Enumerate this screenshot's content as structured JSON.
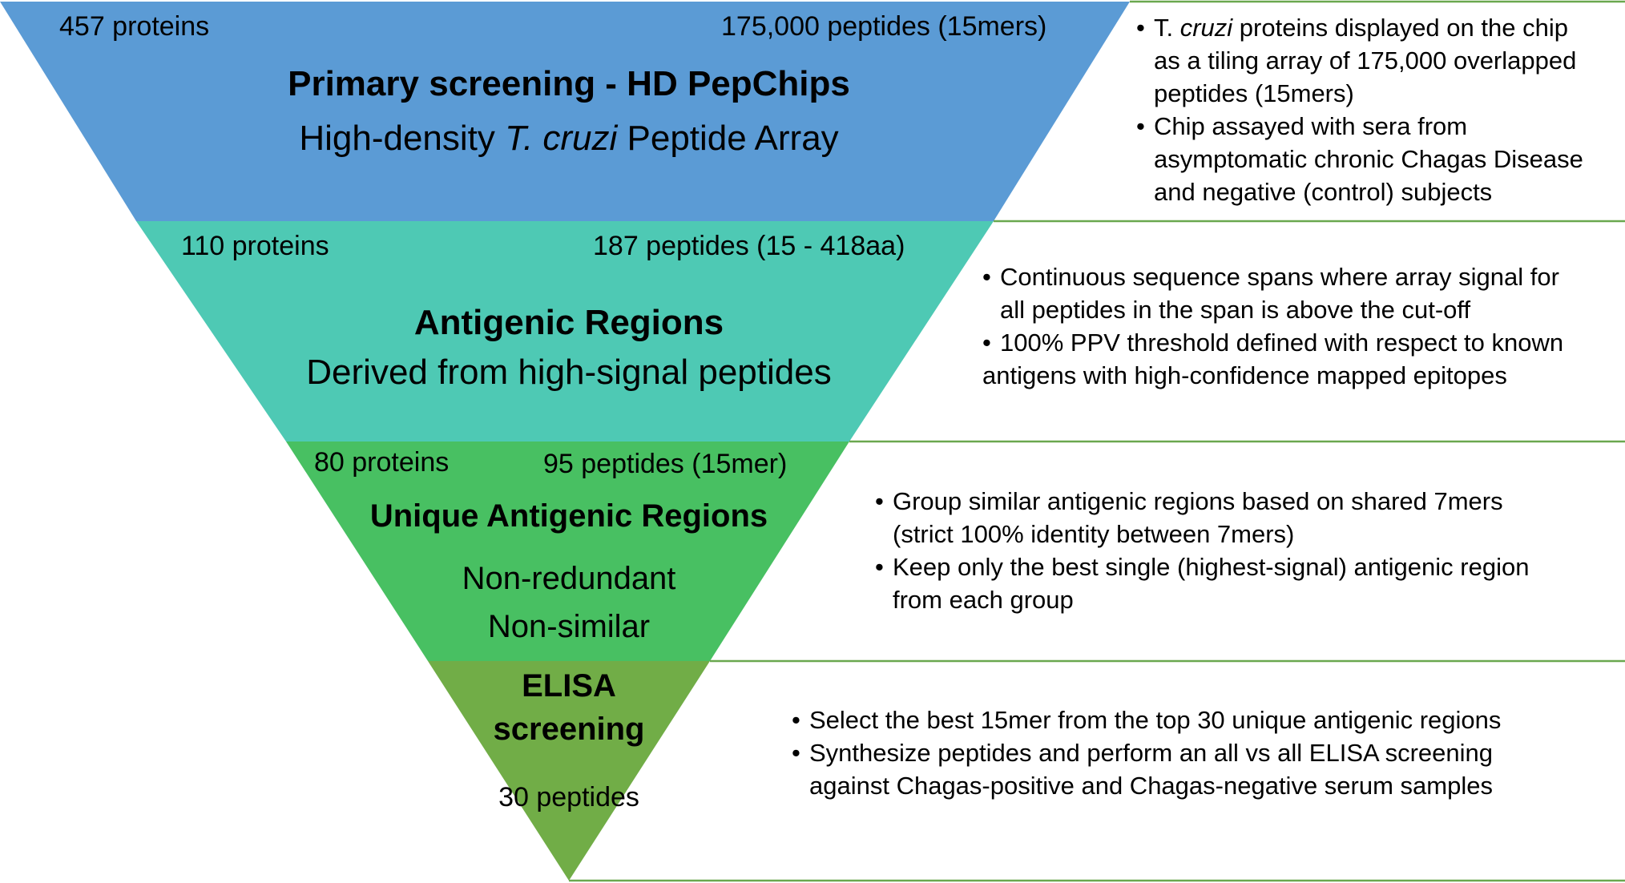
{
  "colors": {
    "level1": "#5b9bd5",
    "level2": "#4ec9b4",
    "level3": "#48c062",
    "level4": "#71ad47",
    "divider_line": "#6aa84f"
  },
  "levels": [
    {
      "left_count": "457 proteins",
      "right_count": "175,000 peptides (15mers)",
      "title": "Primary screening - HD PepChips",
      "subtitle_pre": "High-density ",
      "subtitle_italic": "T. cruzi",
      "subtitle_post": " Peptide Array",
      "bullets": [
        {
          "pre": "T. ",
          "italic": "cruzi",
          "post": " proteins displayed on the chip",
          "lines": [
            "as a tiling array of 175,000 overlapped",
            "peptides (15mers)"
          ]
        },
        {
          "pre": "Chip assayed with sera from",
          "lines": [
            "asymptomatic chronic Chagas Disease",
            "and negative (control) subjects"
          ]
        }
      ]
    },
    {
      "left_count": "110 proteins",
      "right_count": "187 peptides (15 - 418aa)",
      "title": "Antigenic Regions",
      "subtitle": "Derived from high-signal peptides",
      "bullets": [
        {
          "pre": "Continuous sequence spans where array signal for",
          "lines": [
            "all peptides in the span is above the cut-off"
          ]
        },
        {
          "pre": "100% PPV threshold defined with respect to known",
          "lines": [
            "antigens with high-confidence mapped epitopes"
          ]
        }
      ]
    },
    {
      "left_count": "80 proteins",
      "right_count": "95 peptides (15mer)",
      "title": "Unique Antigenic Regions",
      "subtitle_line1": "Non-redundant",
      "subtitle_line2": "Non-similar",
      "bullets": [
        {
          "pre": "Group similar antigenic regions based on shared 7mers",
          "lines": [
            "(strict 100% identity between 7mers)"
          ]
        },
        {
          "pre": "Keep only the best single (highest-signal) antigenic region",
          "lines": [
            "from each group"
          ]
        }
      ]
    },
    {
      "title_line1": "ELISA",
      "title_line2": "screening",
      "count": "30 peptides",
      "bullets": [
        {
          "pre": "Select the best 15mer from the top 30 unique antigenic regions",
          "lines": []
        },
        {
          "pre": "Synthesize peptides and perform an all vs all ELISA screening",
          "lines": [
            "against Chagas-positive and Chagas-negative serum samples"
          ]
        }
      ]
    }
  ]
}
